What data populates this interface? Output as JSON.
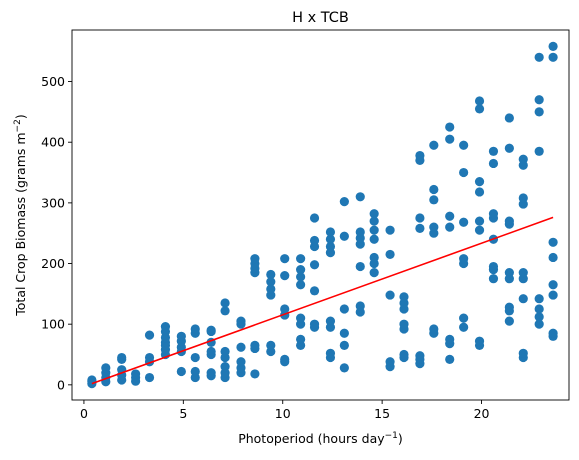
{
  "chart_data": {
    "type": "scatter",
    "title": "H x TCB",
    "xlabel": {
      "text": "Photoperiod (hours day",
      "sup": "−1",
      "close": ")"
    },
    "ylabel": {
      "text": "Total Crop Biomass (grams m",
      "sup": "−2",
      "close": ")"
    },
    "xlim": [
      -0.6,
      24.4
    ],
    "ylim": [
      -25,
      585
    ],
    "xticks": [
      0,
      5,
      10,
      15,
      20
    ],
    "yticks": [
      0,
      100,
      200,
      300,
      400,
      500
    ],
    "grid": false,
    "marker_color": "#1f77b4",
    "fit_line_color": "#ff0000",
    "fit_line": {
      "x": [
        0.4,
        23.6
      ],
      "y": [
        2,
        276
      ]
    },
    "points": [
      [
        0.4,
        2
      ],
      [
        0.4,
        5
      ],
      [
        0.4,
        8
      ],
      [
        1.1,
        5
      ],
      [
        1.1,
        12
      ],
      [
        1.1,
        20
      ],
      [
        1.1,
        28
      ],
      [
        1.9,
        8
      ],
      [
        1.9,
        16
      ],
      [
        1.9,
        25
      ],
      [
        1.9,
        42
      ],
      [
        1.9,
        45
      ],
      [
        2.6,
        6
      ],
      [
        2.6,
        12
      ],
      [
        2.6,
        18
      ],
      [
        3.3,
        12
      ],
      [
        3.3,
        38
      ],
      [
        3.3,
        45
      ],
      [
        3.3,
        82
      ],
      [
        4.1,
        50
      ],
      [
        4.1,
        58
      ],
      [
        4.1,
        65
      ],
      [
        4.1,
        70
      ],
      [
        4.1,
        78
      ],
      [
        4.1,
        88
      ],
      [
        4.1,
        96
      ],
      [
        4.9,
        22
      ],
      [
        4.9,
        55
      ],
      [
        4.9,
        62
      ],
      [
        4.9,
        72
      ],
      [
        4.9,
        80
      ],
      [
        5.6,
        12
      ],
      [
        5.6,
        22
      ],
      [
        5.6,
        45
      ],
      [
        5.6,
        85
      ],
      [
        5.6,
        92
      ],
      [
        6.4,
        15
      ],
      [
        6.4,
        20
      ],
      [
        6.4,
        50
      ],
      [
        6.4,
        55
      ],
      [
        6.4,
        70
      ],
      [
        6.4,
        88
      ],
      [
        6.4,
        90
      ],
      [
        7.1,
        12
      ],
      [
        7.1,
        20
      ],
      [
        7.1,
        30
      ],
      [
        7.1,
        45
      ],
      [
        7.1,
        55
      ],
      [
        7.1,
        122
      ],
      [
        7.1,
        135
      ],
      [
        7.9,
        20
      ],
      [
        7.9,
        28
      ],
      [
        7.9,
        38
      ],
      [
        7.9,
        62
      ],
      [
        7.9,
        100
      ],
      [
        7.9,
        105
      ],
      [
        8.6,
        18
      ],
      [
        8.6,
        60
      ],
      [
        8.6,
        65
      ],
      [
        8.6,
        185
      ],
      [
        8.6,
        192
      ],
      [
        8.6,
        200
      ],
      [
        8.6,
        208
      ],
      [
        9.4,
        55
      ],
      [
        9.4,
        65
      ],
      [
        9.4,
        148
      ],
      [
        9.4,
        158
      ],
      [
        9.4,
        170
      ],
      [
        9.4,
        182
      ],
      [
        10.1,
        38
      ],
      [
        10.1,
        42
      ],
      [
        10.1,
        115
      ],
      [
        10.1,
        125
      ],
      [
        10.1,
        180
      ],
      [
        10.1,
        208
      ],
      [
        10.9,
        65
      ],
      [
        10.9,
        75
      ],
      [
        10.9,
        100
      ],
      [
        10.9,
        110
      ],
      [
        10.9,
        165
      ],
      [
        10.9,
        178
      ],
      [
        10.9,
        190
      ],
      [
        10.9,
        208
      ],
      [
        11.6,
        95
      ],
      [
        11.6,
        100
      ],
      [
        11.6,
        155
      ],
      [
        11.6,
        198
      ],
      [
        11.6,
        228
      ],
      [
        11.6,
        238
      ],
      [
        11.6,
        275
      ],
      [
        12.4,
        45
      ],
      [
        12.4,
        52
      ],
      [
        12.4,
        95
      ],
      [
        12.4,
        105
      ],
      [
        12.4,
        218
      ],
      [
        12.4,
        228
      ],
      [
        12.4,
        240
      ],
      [
        12.4,
        252
      ],
      [
        13.1,
        28
      ],
      [
        13.1,
        65
      ],
      [
        13.1,
        85
      ],
      [
        13.1,
        125
      ],
      [
        13.1,
        245
      ],
      [
        13.1,
        302
      ],
      [
        13.9,
        120
      ],
      [
        13.9,
        130
      ],
      [
        13.9,
        195
      ],
      [
        13.9,
        232
      ],
      [
        13.9,
        242
      ],
      [
        13.9,
        252
      ],
      [
        13.9,
        310
      ],
      [
        14.6,
        185
      ],
      [
        14.6,
        200
      ],
      [
        14.6,
        210
      ],
      [
        14.6,
        240
      ],
      [
        14.6,
        255
      ],
      [
        14.6,
        270
      ],
      [
        14.6,
        282
      ],
      [
        15.4,
        30
      ],
      [
        15.4,
        38
      ],
      [
        15.4,
        148
      ],
      [
        15.4,
        215
      ],
      [
        15.4,
        255
      ],
      [
        16.1,
        45
      ],
      [
        16.1,
        50
      ],
      [
        16.1,
        92
      ],
      [
        16.1,
        100
      ],
      [
        16.1,
        125
      ],
      [
        16.1,
        135
      ],
      [
        16.1,
        145
      ],
      [
        16.9,
        35
      ],
      [
        16.9,
        42
      ],
      [
        16.9,
        48
      ],
      [
        16.9,
        258
      ],
      [
        16.9,
        275
      ],
      [
        16.9,
        370
      ],
      [
        16.9,
        378
      ],
      [
        17.6,
        85
      ],
      [
        17.6,
        92
      ],
      [
        17.6,
        250
      ],
      [
        17.6,
        260
      ],
      [
        17.6,
        305
      ],
      [
        17.6,
        322
      ],
      [
        17.6,
        395
      ],
      [
        18.4,
        42
      ],
      [
        18.4,
        68
      ],
      [
        18.4,
        75
      ],
      [
        18.4,
        260
      ],
      [
        18.4,
        278
      ],
      [
        18.4,
        405
      ],
      [
        18.4,
        425
      ],
      [
        19.1,
        95
      ],
      [
        19.1,
        110
      ],
      [
        19.1,
        200
      ],
      [
        19.1,
        208
      ],
      [
        19.1,
        268
      ],
      [
        19.1,
        350
      ],
      [
        19.1,
        395
      ],
      [
        19.9,
        65
      ],
      [
        19.9,
        72
      ],
      [
        19.9,
        255
      ],
      [
        19.9,
        270
      ],
      [
        19.9,
        318
      ],
      [
        19.9,
        335
      ],
      [
        19.9,
        455
      ],
      [
        19.9,
        468
      ],
      [
        20.6,
        175
      ],
      [
        20.6,
        190
      ],
      [
        20.6,
        195
      ],
      [
        20.6,
        240
      ],
      [
        20.6,
        275
      ],
      [
        20.6,
        282
      ],
      [
        20.6,
        365
      ],
      [
        20.6,
        385
      ],
      [
        21.4,
        105
      ],
      [
        21.4,
        122
      ],
      [
        21.4,
        128
      ],
      [
        21.4,
        175
      ],
      [
        21.4,
        185
      ],
      [
        21.4,
        265
      ],
      [
        21.4,
        270
      ],
      [
        21.4,
        390
      ],
      [
        21.4,
        440
      ],
      [
        22.1,
        45
      ],
      [
        22.1,
        52
      ],
      [
        22.1,
        142
      ],
      [
        22.1,
        175
      ],
      [
        22.1,
        185
      ],
      [
        22.1,
        298
      ],
      [
        22.1,
        308
      ],
      [
        22.1,
        362
      ],
      [
        22.1,
        372
      ],
      [
        22.9,
        100
      ],
      [
        22.9,
        112
      ],
      [
        22.9,
        125
      ],
      [
        22.9,
        142
      ],
      [
        22.9,
        385
      ],
      [
        22.9,
        450
      ],
      [
        22.9,
        470
      ],
      [
        22.9,
        540
      ],
      [
        23.6,
        80
      ],
      [
        23.6,
        85
      ],
      [
        23.6,
        148
      ],
      [
        23.6,
        165
      ],
      [
        23.6,
        210
      ],
      [
        23.6,
        235
      ],
      [
        23.6,
        540
      ],
      [
        23.6,
        558
      ]
    ]
  }
}
